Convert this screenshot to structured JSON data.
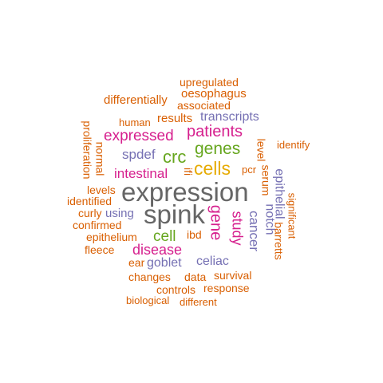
{
  "colors": {
    "orange": "#d95f02",
    "magenta": "#d6208e",
    "purple": "#7570b3",
    "green": "#66a61e",
    "gray": "#666666",
    "olive": "#a6761d",
    "gold": "#e6ab02"
  },
  "words": [
    {
      "text": "expression",
      "color": "gray"
    },
    {
      "text": "spink",
      "color": "gray"
    },
    {
      "text": "cells",
      "color": "gold"
    },
    {
      "text": "genes",
      "color": "green"
    },
    {
      "text": "patients",
      "color": "magenta"
    },
    {
      "text": "crc",
      "color": "green"
    },
    {
      "text": "expressed",
      "color": "magenta"
    },
    {
      "text": "intestinal",
      "color": "magenta"
    },
    {
      "text": "gene",
      "color": "magenta"
    },
    {
      "text": "cell",
      "color": "green"
    },
    {
      "text": "disease",
      "color": "magenta"
    },
    {
      "text": "study",
      "color": "magenta"
    },
    {
      "text": "transcripts",
      "color": "purple"
    },
    {
      "text": "spdef",
      "color": "purple"
    },
    {
      "text": "goblet",
      "color": "purple"
    },
    {
      "text": "celiac",
      "color": "purple"
    },
    {
      "text": "cancer",
      "color": "purple"
    },
    {
      "text": "notch",
      "color": "purple"
    },
    {
      "text": "epithelial",
      "color": "purple"
    },
    {
      "text": "using",
      "color": "purple"
    },
    {
      "text": "upregulated",
      "color": "orange"
    },
    {
      "text": "oesophagus",
      "color": "orange"
    },
    {
      "text": "differentially",
      "color": "orange"
    },
    {
      "text": "associated",
      "color": "orange"
    },
    {
      "text": "human",
      "color": "orange"
    },
    {
      "text": "results",
      "color": "orange"
    },
    {
      "text": "proliferation",
      "color": "orange"
    },
    {
      "text": "normal",
      "color": "orange"
    },
    {
      "text": "identify",
      "color": "orange"
    },
    {
      "text": "level",
      "color": "orange"
    },
    {
      "text": "pcr",
      "color": "orange"
    },
    {
      "text": "serum",
      "color": "orange"
    },
    {
      "text": "ifi",
      "color": "orange"
    },
    {
      "text": "levels",
      "color": "orange"
    },
    {
      "text": "identified",
      "color": "orange"
    },
    {
      "text": "curly",
      "color": "orange"
    },
    {
      "text": "confirmed",
      "color": "orange"
    },
    {
      "text": "epithelium",
      "color": "orange"
    },
    {
      "text": "ibd",
      "color": "orange"
    },
    {
      "text": "fleece",
      "color": "orange"
    },
    {
      "text": "ear",
      "color": "orange"
    },
    {
      "text": "barretts",
      "color": "orange"
    },
    {
      "text": "significant",
      "color": "orange"
    },
    {
      "text": "changes",
      "color": "orange"
    },
    {
      "text": "data",
      "color": "orange"
    },
    {
      "text": "survival",
      "color": "orange"
    },
    {
      "text": "controls",
      "color": "orange"
    },
    {
      "text": "response",
      "color": "orange"
    },
    {
      "text": "biological",
      "color": "orange"
    },
    {
      "text": "different",
      "color": "orange"
    }
  ]
}
